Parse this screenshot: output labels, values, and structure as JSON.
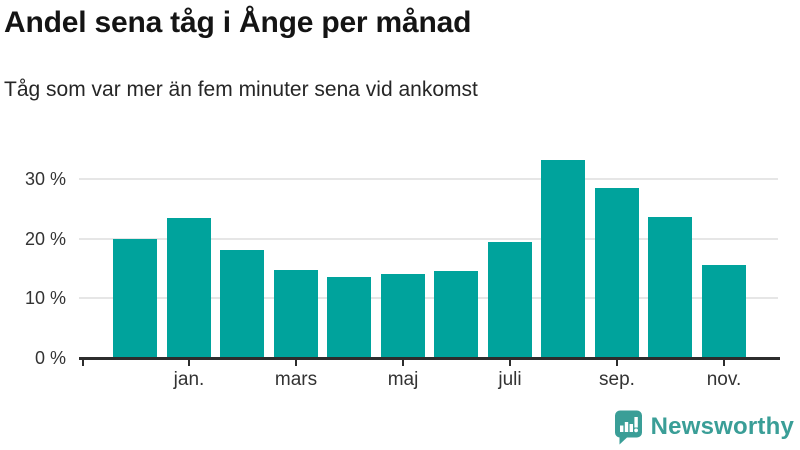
{
  "title": "Andel sena tåg i Ånge per månad",
  "subtitle": "Tåg som var mer än fem minuter sena vid ankomst",
  "footer": {
    "brand": "Newsworthy"
  },
  "colors": {
    "bar": "#00a39c",
    "logo_teal": "#3a9e97",
    "gridline": "#e6e6e6",
    "axis_line": "#2d2d2d",
    "title_text": "#141414",
    "axis_text": "#333333"
  },
  "chart_data": {
    "type": "bar",
    "title": "Andel sena tåg i Ånge per månad",
    "subtitle": "Tåg som var mer än fem minuter sena vid ankomst",
    "categories": [
      "",
      "jan.",
      "",
      "mars",
      "",
      "maj",
      "",
      "juli",
      "",
      "sep.",
      "",
      "nov."
    ],
    "values": [
      19.9,
      23.4,
      18.1,
      14.7,
      13.6,
      14.1,
      14.5,
      19.4,
      33.1,
      28.4,
      23.7,
      15.6
    ],
    "unit": "%",
    "y_ticks": [
      0,
      10,
      20,
      30
    ],
    "y_tick_labels": [
      "0 %",
      "10 %",
      "20 %",
      "30 %"
    ],
    "ylim": [
      0,
      35
    ],
    "grid": "horizontal",
    "legend": "none",
    "bar_color": "#00a39c"
  }
}
